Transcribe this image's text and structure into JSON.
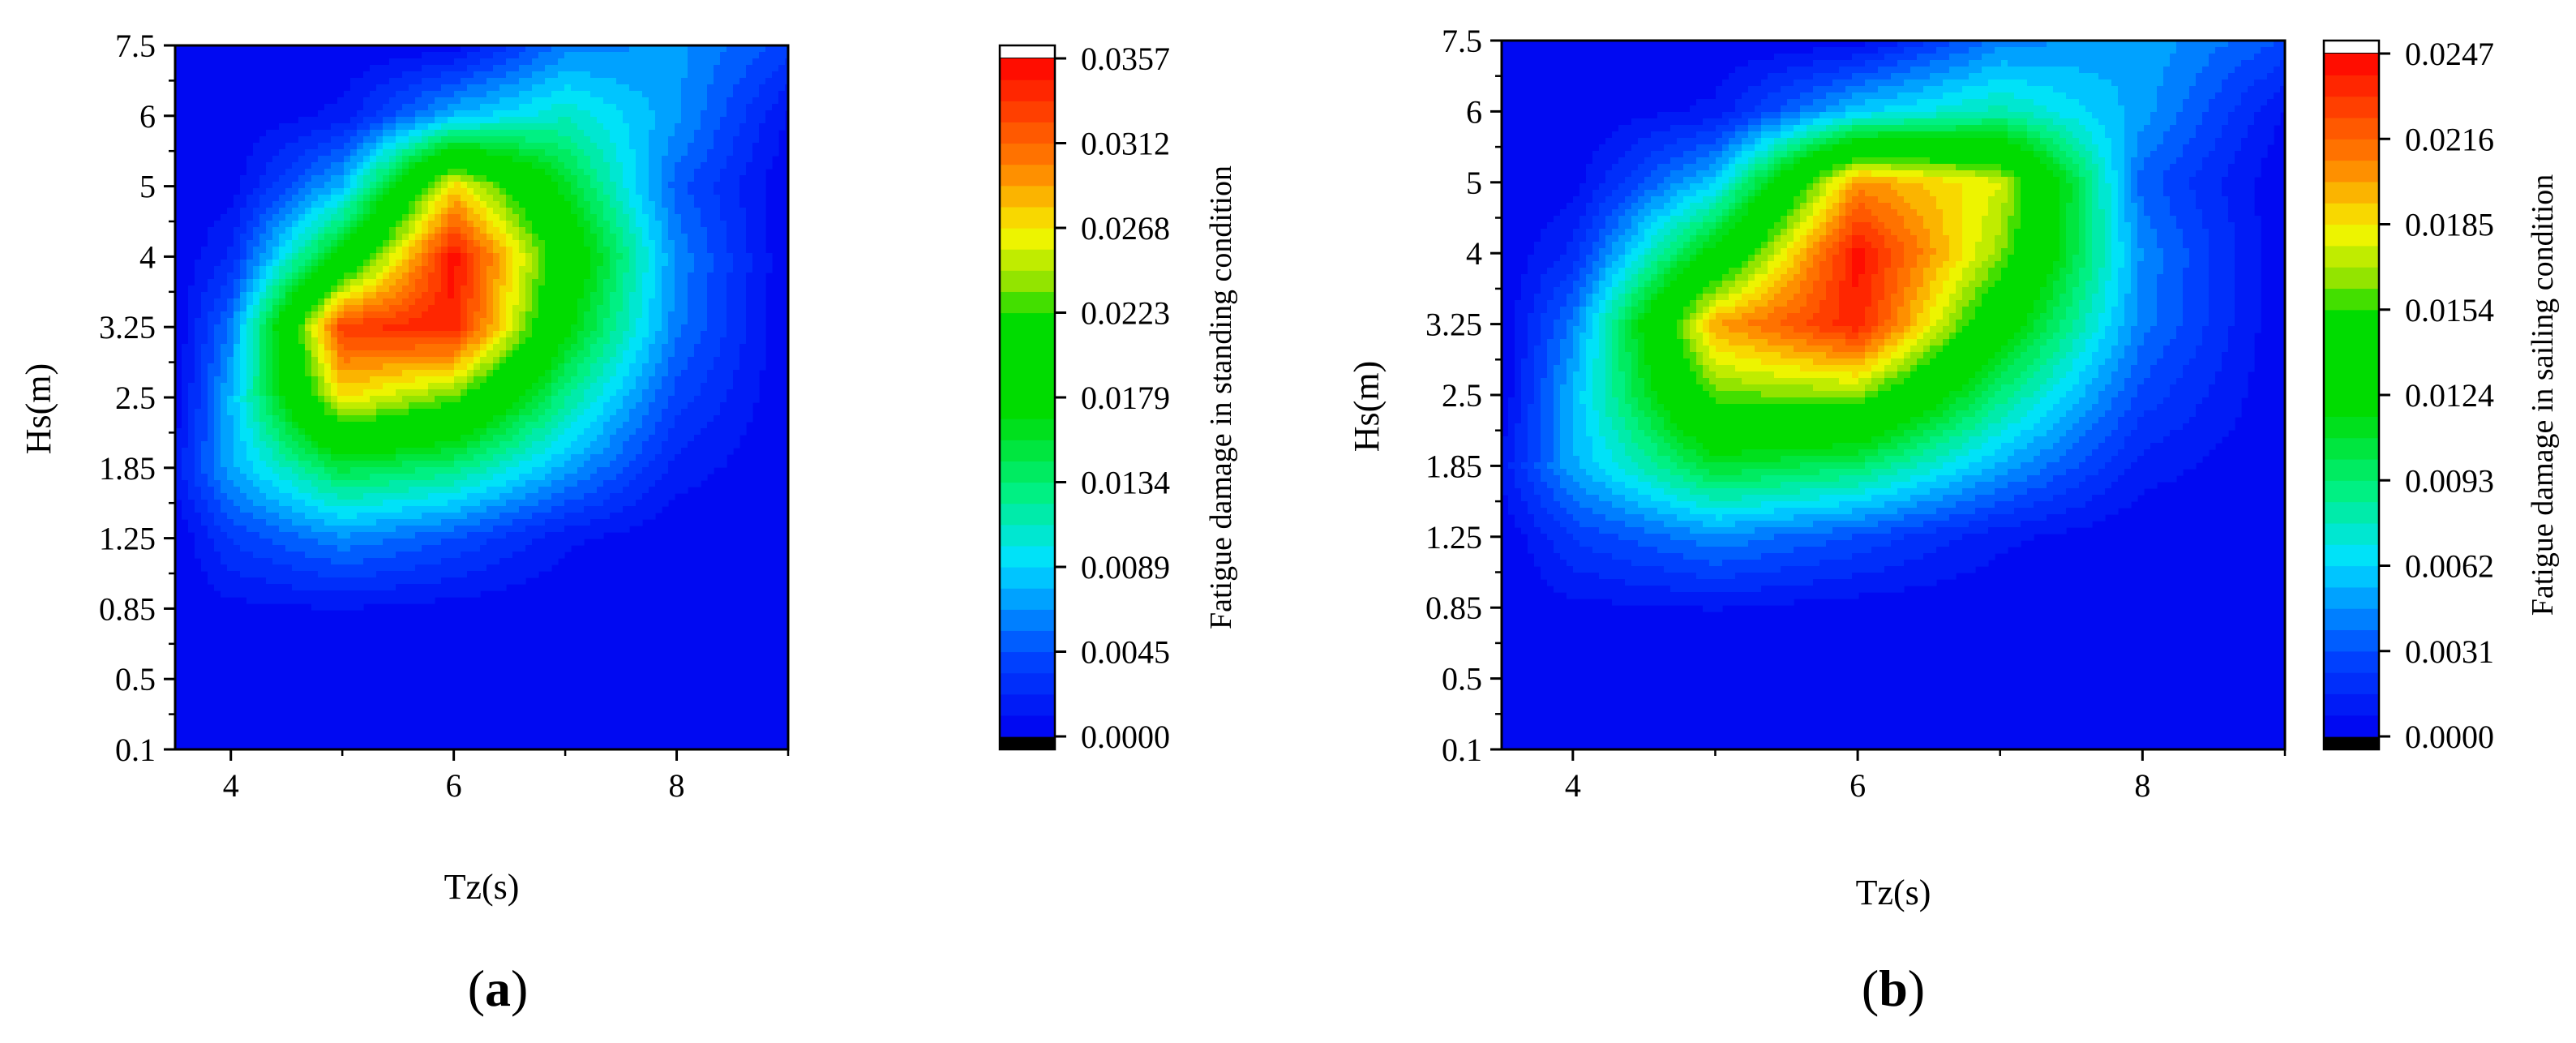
{
  "chart_data": [
    {
      "type": "heatmap",
      "panel_label": "a",
      "xlabel": "Tz(s)",
      "ylabel": "Hs(m)",
      "colorbar_label": "Fatigue damage in standing condition",
      "x_ticks": [
        "4",
        "6",
        "8"
      ],
      "x_tick_values": [
        4,
        6,
        8
      ],
      "xlim": [
        3.5,
        9
      ],
      "y_ticks": [
        "0.1",
        "0.5",
        "0.85",
        "1.25",
        "1.85",
        "2.5",
        "3.25",
        "4",
        "5",
        "6",
        "7.5"
      ],
      "colorbar_ticks": [
        "0.0000",
        "0.0045",
        "0.0089",
        "0.0134",
        "0.0179",
        "0.0223",
        "0.0268",
        "0.0312",
        "0.0357"
      ],
      "colorbar_range": [
        0,
        0.0357
      ],
      "x": [
        3.5,
        4,
        5,
        6,
        7,
        8,
        9
      ],
      "y": [
        "0.1",
        "0.5",
        "0.85",
        "1.25",
        "1.85",
        "2.5",
        "3.25",
        "4",
        "5",
        "6",
        "7.5"
      ],
      "z": [
        [
          0,
          0,
          0,
          0,
          0,
          0,
          0
        ],
        [
          0,
          0,
          0,
          0,
          0,
          0,
          0
        ],
        [
          0,
          0.0007,
          0.0011,
          0.0005,
          0,
          0,
          0
        ],
        [
          0,
          0.0035,
          0.0065,
          0.0045,
          0.0014,
          0,
          0
        ],
        [
          0.0015,
          0.0075,
          0.015,
          0.013,
          0.0075,
          0.0018,
          0
        ],
        [
          0,
          0.008,
          0.027,
          0.023,
          0.0125,
          0.004,
          0
        ],
        [
          0,
          0.006,
          0.033,
          0.0345,
          0.0175,
          0.006,
          0
        ],
        [
          0,
          0.0025,
          0.018,
          0.0352,
          0.02,
          0.0065,
          0
        ],
        [
          0,
          0.0005,
          0.008,
          0.0275,
          0.016,
          0.005,
          0
        ],
        [
          0,
          0,
          0.0015,
          0.008,
          0.011,
          0.007,
          0.001
        ],
        [
          0,
          0,
          0,
          0.0005,
          0.006,
          0.007,
          0.004
        ]
      ]
    },
    {
      "type": "heatmap",
      "panel_label": "b",
      "xlabel": "Tz(s)",
      "ylabel": "Hs(m)",
      "colorbar_label": "Fatigue damage in sailing condition",
      "x_ticks": [
        "4",
        "6",
        "8"
      ],
      "x_tick_values": [
        4,
        6,
        8
      ],
      "xlim": [
        3.5,
        9
      ],
      "y_ticks": [
        "0.1",
        "0.5",
        "0.85",
        "1.25",
        "1.85",
        "2.5",
        "3.25",
        "4",
        "5",
        "6",
        "7.5"
      ],
      "colorbar_ticks": [
        "0.0000",
        "0.0031",
        "0.0062",
        "0.0093",
        "0.0124",
        "0.0154",
        "0.0185",
        "0.0216",
        "0.0247"
      ],
      "colorbar_range": [
        0,
        0.0247
      ],
      "x": [
        3.5,
        4,
        5,
        6,
        7,
        8,
        9
      ],
      "y": [
        "0.1",
        "0.5",
        "0.85",
        "1.25",
        "1.85",
        "2.5",
        "3.25",
        "4",
        "5",
        "6",
        "7.5"
      ],
      "z": [
        [
          0,
          0,
          0,
          0,
          0,
          0,
          0
        ],
        [
          0,
          0,
          0,
          0,
          0,
          0,
          0
        ],
        [
          0,
          0.0005,
          0.0008,
          0.0003,
          0,
          0,
          0
        ],
        [
          0,
          0.0024,
          0.0045,
          0.003,
          0.001,
          0,
          0
        ],
        [
          0.001,
          0.0052,
          0.0108,
          0.0095,
          0.0052,
          0.0012,
          0
        ],
        [
          0,
          0.0055,
          0.016,
          0.0165,
          0.009,
          0.0028,
          0
        ],
        [
          0,
          0.0042,
          0.02,
          0.0238,
          0.013,
          0.0042,
          0
        ],
        [
          0,
          0.0018,
          0.0125,
          0.0243,
          0.0165,
          0.0045,
          0
        ],
        [
          0,
          0.0004,
          0.006,
          0.0205,
          0.0178,
          0.0035,
          0
        ],
        [
          0,
          0,
          0.001,
          0.006,
          0.008,
          0.005,
          0.0007
        ],
        [
          0,
          0,
          0,
          0.0003,
          0.0042,
          0.0052,
          0.003
        ]
      ]
    }
  ]
}
